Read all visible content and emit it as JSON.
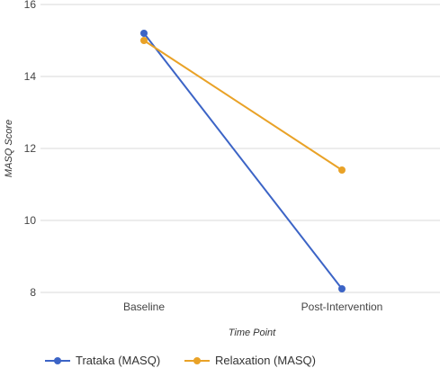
{
  "chart_data": {
    "type": "line",
    "categories": [
      "Baseline",
      "Post-Intervention"
    ],
    "series": [
      {
        "name": "Trataka (MASQ)",
        "values": [
          15.2,
          8.1
        ],
        "color": "#3c64c6"
      },
      {
        "name": "Relaxation (MASQ)",
        "values": [
          15.0,
          11.4
        ],
        "color": "#e9a227"
      }
    ],
    "xlabel": "Time Point",
    "ylabel": "MASQ Score",
    "ylim": [
      8,
      16
    ],
    "yticks": [
      8,
      10,
      12,
      14,
      16
    ],
    "grid": true,
    "legend_position": "bottom"
  }
}
